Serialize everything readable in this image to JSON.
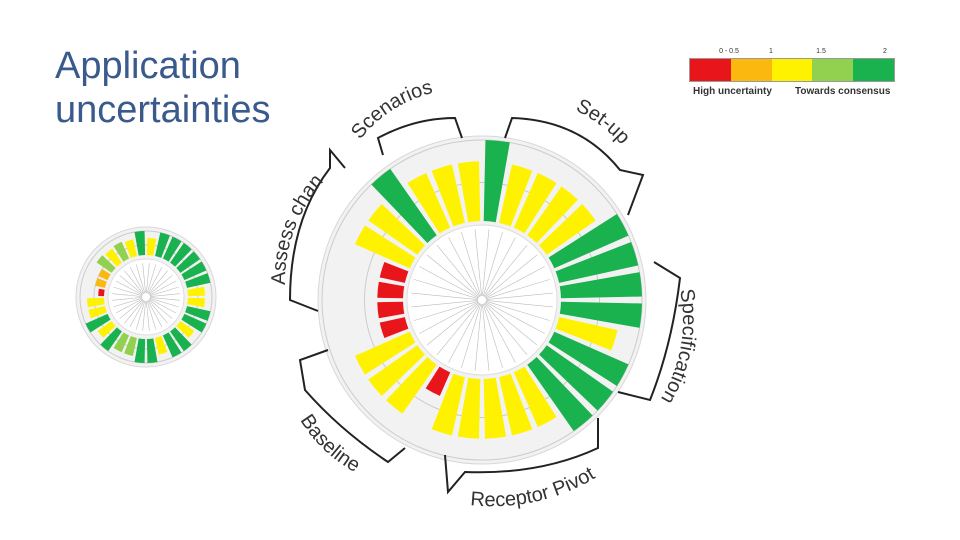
{
  "slide": {
    "title_line1": "Application",
    "title_line2": "uncertainties"
  },
  "legend": {
    "ticks": [
      "0 - 0.5",
      "1",
      "1.5",
      "2"
    ],
    "left_label": "High uncertainty",
    "right_label": "Towards consensus",
    "colors": [
      "#e8151b",
      "#fbb80f",
      "#fff200",
      "#92d050",
      "#1ab14f"
    ]
  },
  "sectors": [
    {
      "label": "Scenarios"
    },
    {
      "label": "Set-up"
    },
    {
      "label": "Specification"
    },
    {
      "label": "Receptor Pivot"
    },
    {
      "label": "Baseline"
    },
    {
      "label": "Assess change"
    }
  ],
  "large_wheel": {
    "levels": [
      2,
      1.5,
      1.5,
      1.5,
      1.5,
      2,
      2,
      2,
      2,
      1.5,
      2,
      2,
      2,
      1.5,
      1.5,
      1.5,
      1.5,
      1.5,
      0.5,
      1.5,
      1.5,
      1.5,
      0.5,
      0.5,
      0.5,
      0.5,
      1.5,
      1.5,
      2,
      1.5,
      1.5,
      1.5
    ]
  },
  "small_wheel": {
    "levels": [
      1.5,
      2,
      2,
      2,
      2,
      2,
      2,
      1.5,
      1.5,
      2,
      2,
      1.5,
      2,
      2,
      1.5,
      2,
      2,
      1.6,
      1.6,
      2,
      1.5,
      2,
      1.5,
      1.5,
      0.5,
      1,
      1,
      1.6,
      1.5,
      1.6,
      1.5,
      2
    ]
  },
  "palette": {
    "red": "#e8151b",
    "orange": "#fbb80f",
    "yellow": "#fff200",
    "lightgreen": "#92d050",
    "green": "#1ab14f",
    "bracket": "#222222"
  }
}
